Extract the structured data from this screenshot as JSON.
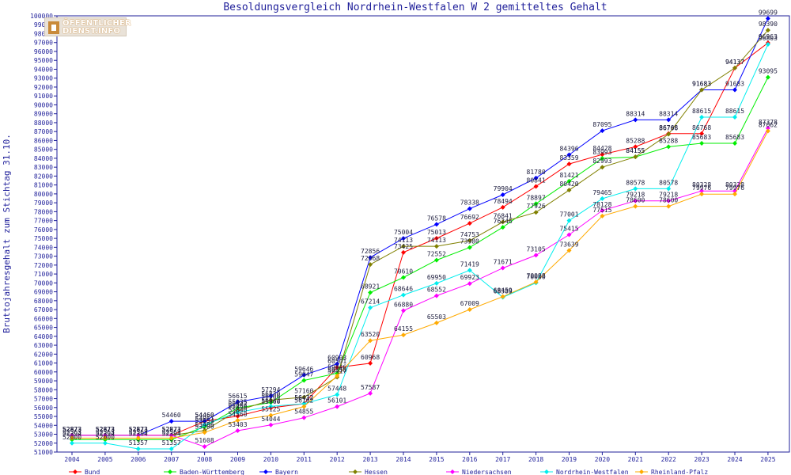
{
  "chart_data": {
    "type": "line",
    "title": "Besoldungsvergleich Nordrhein-Westfalen W 2 gemitteltes Gehalt",
    "ylabel": "Bruttojahresgehalt zum Stichtag 31.10.",
    "xlabel": "",
    "ylim": [
      51000,
      100000
    ],
    "grid": false,
    "legend_position": "bottom",
    "x": [
      "2004",
      "2005",
      "2006",
      "2007",
      "2008",
      "2009",
      "2010",
      "2011",
      "2012",
      "2013",
      "2014",
      "2015",
      "2016",
      "2017",
      "2018",
      "2019",
      "2020",
      "2021",
      "2022",
      "2023",
      "2024",
      "2025"
    ],
    "y_ticks": [
      51000,
      52000,
      53000,
      54000,
      55000,
      56000,
      57000,
      58000,
      59000,
      60000,
      61000,
      62000,
      63000,
      64000,
      65000,
      66000,
      67000,
      68000,
      69000,
      70000,
      71000,
      72000,
      73000,
      74000,
      75000,
      76000,
      77000,
      78000,
      79000,
      80000,
      81000,
      82000,
      83000,
      84000,
      85000,
      86000,
      87000,
      88000,
      89000,
      90000,
      91000,
      92000,
      93000,
      94000,
      95000,
      96000,
      97000,
      98000,
      99000,
      100000
    ],
    "series": [
      {
        "name": "Bund",
        "color": "#ff0000",
        "values": [
          52873,
          52873,
          52873,
          52873,
          54460,
          55040,
          55960,
          56432,
          60501,
          60968,
          73425,
          75013,
          76692,
          78494,
          80841,
          83359,
          84428,
          85288,
          86768,
          86768,
          94137,
          96963
        ]
      },
      {
        "name": "Baden-Württemberg",
        "color": "#00ee00",
        "values": [
          52394,
          52394,
          52394,
          52394,
          53854,
          55935,
          56566,
          59047,
          59846,
          68921,
          70610,
          72552,
          73980,
          76246,
          78897,
          81421,
          83993,
          84155,
          85288,
          85683,
          85683,
          93095
        ]
      },
      {
        "name": "Bayern",
        "color": "#0000ff",
        "values": [
          52873,
          52873,
          52873,
          54460,
          54460,
          56615,
          57294,
          59646,
          60903,
          72856,
          75004,
          76578,
          78338,
          79904,
          81780,
          84396,
          87095,
          88314,
          88314,
          91683,
          91683,
          99699
        ]
      },
      {
        "name": "Hessen",
        "color": "#808000",
        "values": [
          52873,
          52873,
          52873,
          52873,
          53406,
          55647,
          56830,
          57160,
          59417,
          72068,
          74113,
          74113,
          74753,
          76841,
          77926,
          80420,
          82993,
          84155,
          86706,
          91683,
          94137,
          98390
        ]
      },
      {
        "name": "Niedersachsen",
        "color": "#ff00ff",
        "values": [
          52873,
          52873,
          52873,
          52873,
          51608,
          53403,
          54044,
          54855,
          56101,
          57587,
          66880,
          68552,
          69923,
          71671,
          73105,
          75415,
          78128,
          79218,
          79218,
          80328,
          80328,
          87378
        ]
      },
      {
        "name": "Nordrhein-Westfalen",
        "color": "#00eeee",
        "values": [
          52000,
          52000,
          51357,
          51357,
          54061,
          55460,
          56132,
          56432,
          57448,
          67214,
          68646,
          69950,
          71419,
          68389,
          70000,
          77001,
          79465,
          80578,
          80578,
          88615,
          88615,
          96803
        ]
      },
      {
        "name": "Rheinland-Pfalz",
        "color": "#ffaa00",
        "values": [
          52563,
          52563,
          52563,
          52563,
          53200,
          54560,
          55125,
          56102,
          59550,
          63520,
          64155,
          65503,
          67009,
          68459,
          70098,
          73639,
          77515,
          78600,
          78600,
          79976,
          79976,
          87062
        ]
      }
    ]
  },
  "logo": {
    "line1": "ÖFFENTLICHER",
    "line2": "DIENST.INFO"
  }
}
